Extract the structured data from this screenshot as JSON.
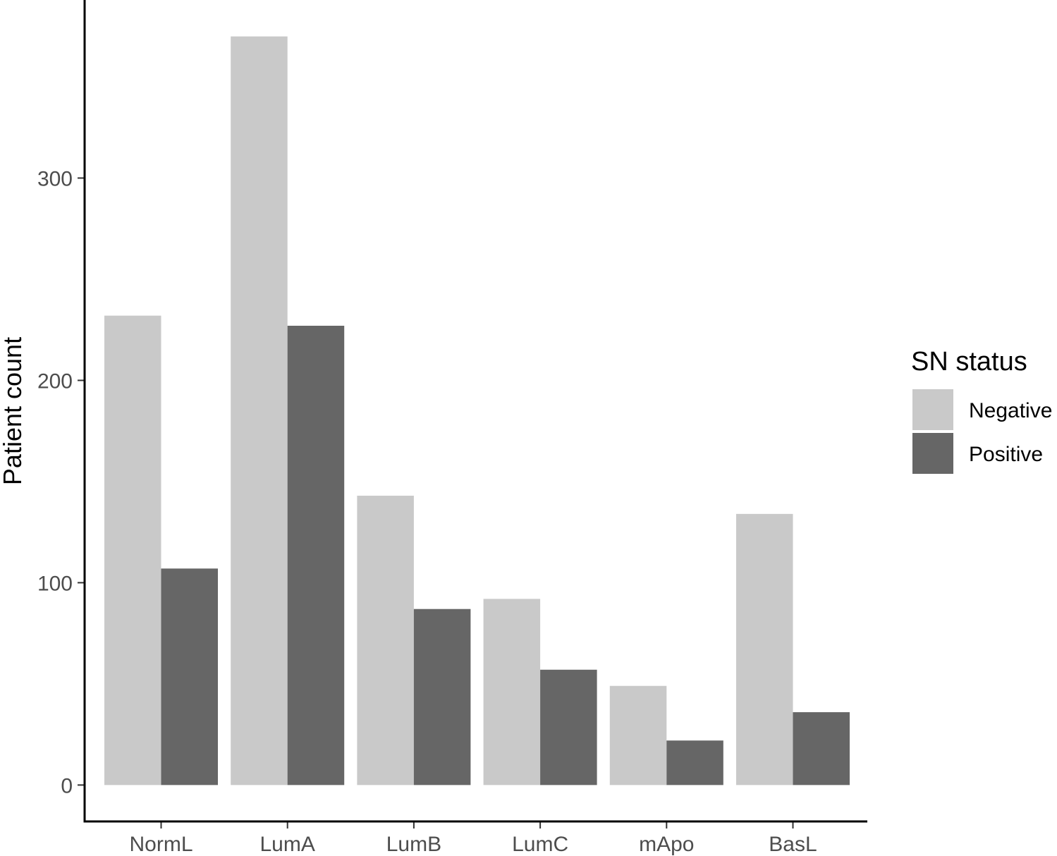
{
  "chart_data": {
    "type": "bar",
    "categories": [
      "NormL",
      "LumA",
      "LumB",
      "LumC",
      "mApo",
      "BasL"
    ],
    "series": [
      {
        "name": "Negative",
        "color": "#c9c9c9",
        "values": [
          232,
          370,
          143,
          92,
          49,
          134
        ]
      },
      {
        "name": "Positive",
        "color": "#666666",
        "values": [
          107,
          227,
          87,
          57,
          22,
          36
        ]
      }
    ],
    "title": "",
    "xlabel": "",
    "ylabel": "Patient count",
    "ylim": [
      -18,
      388
    ],
    "yticks": [
      0,
      100,
      200,
      300
    ],
    "grid": false,
    "legend": {
      "title": "SN status",
      "position": "right"
    }
  }
}
